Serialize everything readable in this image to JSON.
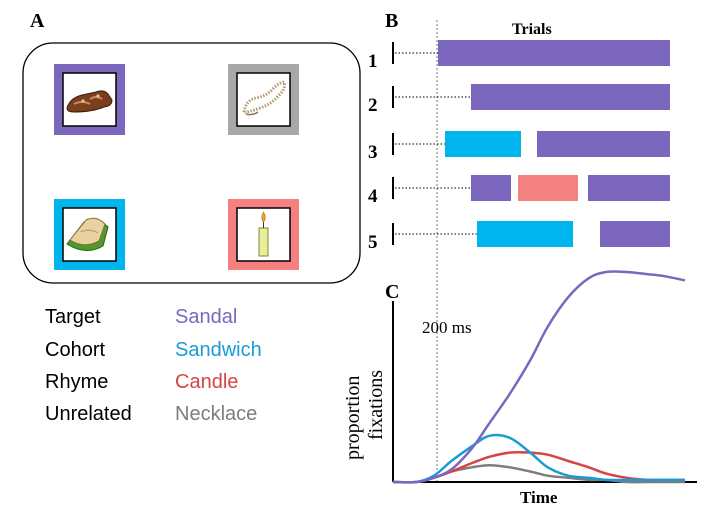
{
  "colors": {
    "target": "#7b68be",
    "cohort": "#1a9bd6",
    "rhyme": "#d84343",
    "unrelated": "#7d7d7d",
    "bar_target": "#7b68be",
    "bar_cohort": "#00b4ee",
    "bar_rhyme": "#f48080",
    "frame_necklace": "#a8a8a8",
    "frame_candle": "#f48080"
  },
  "panel_a": {
    "letter": "A",
    "icons": {
      "sandal": "sandal-icon",
      "necklace": "necklace-icon",
      "sandwich": "sandwich-icon",
      "candle": "candle-icon"
    },
    "legend": [
      {
        "role": "Target",
        "word": "Sandal",
        "color": "#7b68be"
      },
      {
        "role": "Cohort",
        "word": "Sandwich",
        "color": "#1a9bd6"
      },
      {
        "role": "Rhyme",
        "word": "Candle",
        "color": "#d84343"
      },
      {
        "role": "Unrelated",
        "word": "Necklace",
        "color": "#7d7d7d"
      }
    ]
  },
  "panel_b": {
    "letter": "B",
    "header": "Trials",
    "trials": [
      {
        "label": "1",
        "fixations": [
          {
            "object": "target"
          }
        ]
      },
      {
        "label": "2",
        "fixations": [
          {
            "object": "target"
          }
        ]
      },
      {
        "label": "3",
        "fixations": [
          {
            "object": "cohort"
          },
          {
            "object": "target"
          }
        ]
      },
      {
        "label": "4",
        "fixations": [
          {
            "object": "target"
          },
          {
            "object": "rhyme"
          },
          {
            "object": "target"
          }
        ]
      },
      {
        "label": "5",
        "fixations": [
          {
            "object": "cohort"
          },
          {
            "object": "target"
          }
        ]
      }
    ]
  },
  "panel_c": {
    "letter": "C",
    "ylabel_line1": "proportion",
    "ylabel_line2": "fixations",
    "xlabel": "Time",
    "marker_label": "200 ms"
  },
  "chart_data": {
    "type": "line",
    "title": "",
    "xlabel": "Time",
    "ylabel": "proportion fixations",
    "xlim": [
      0,
      1
    ],
    "ylim": [
      0,
      1
    ],
    "annotations": [
      "200 ms"
    ],
    "series": [
      {
        "name": "Target",
        "color": "#7b68be",
        "x": [
          0,
          0.08,
          0.14,
          0.2,
          0.27,
          0.33,
          0.4,
          0.47,
          0.53,
          0.6,
          0.67,
          0.73,
          0.8,
          0.87,
          0.93,
          1.0
        ],
        "y": [
          0.0,
          0.0,
          0.02,
          0.06,
          0.16,
          0.28,
          0.42,
          0.58,
          0.74,
          0.88,
          0.97,
          1.0,
          1.0,
          0.99,
          0.98,
          0.96
        ]
      },
      {
        "name": "Cohort",
        "color": "#1a9bd6",
        "x": [
          0,
          0.08,
          0.14,
          0.2,
          0.27,
          0.33,
          0.4,
          0.47,
          0.53,
          0.6,
          0.67,
          0.73,
          0.8,
          0.87,
          0.93,
          1.0
        ],
        "y": [
          0.0,
          0.0,
          0.03,
          0.1,
          0.17,
          0.22,
          0.21,
          0.14,
          0.07,
          0.03,
          0.02,
          0.01,
          0.01,
          0.01,
          0.01,
          0.01
        ]
      },
      {
        "name": "Rhyme",
        "color": "#d84343",
        "x": [
          0,
          0.08,
          0.14,
          0.2,
          0.27,
          0.33,
          0.4,
          0.47,
          0.53,
          0.6,
          0.67,
          0.73,
          0.8,
          0.87,
          0.93,
          1.0
        ],
        "y": [
          0.0,
          0.0,
          0.02,
          0.05,
          0.09,
          0.12,
          0.14,
          0.14,
          0.13,
          0.1,
          0.07,
          0.04,
          0.02,
          0.01,
          0.01,
          0.01
        ]
      },
      {
        "name": "Unrelated",
        "color": "#7d7d7d",
        "x": [
          0,
          0.08,
          0.14,
          0.2,
          0.27,
          0.33,
          0.4,
          0.47,
          0.53,
          0.6,
          0.67,
          0.73,
          0.8,
          0.87,
          0.93,
          1.0
        ],
        "y": [
          0.0,
          0.0,
          0.02,
          0.05,
          0.07,
          0.08,
          0.07,
          0.05,
          0.03,
          0.02,
          0.01,
          0.01,
          0.0,
          0.0,
          0.0,
          0.0
        ]
      }
    ]
  }
}
